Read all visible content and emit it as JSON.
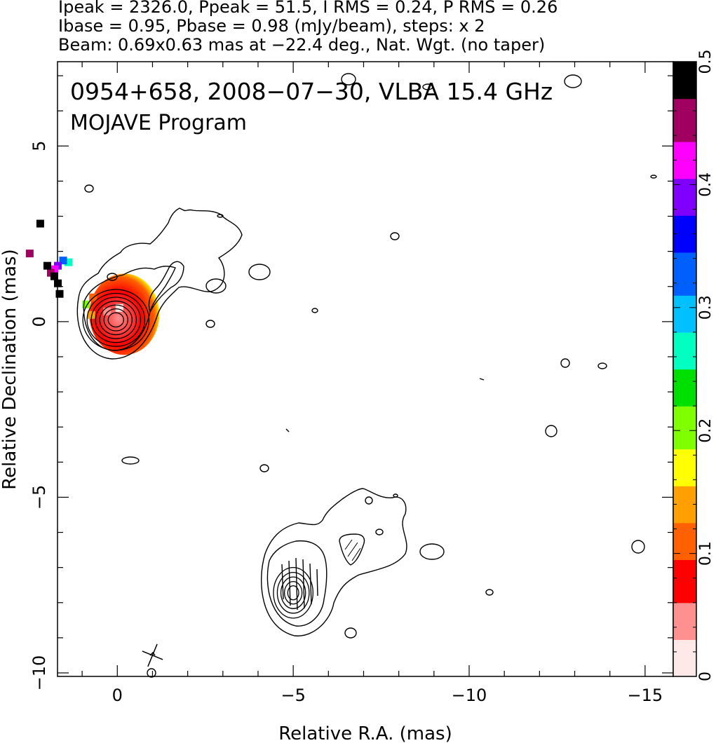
{
  "header": {
    "line1": "Ipeak = 2326.0, Ppeak = 51.5, I RMS = 0.24, P RMS = 0.26",
    "line2": "Ibase = 0.95, Pbase = 0.98 (mJy/beam), steps: x 2",
    "line3": "Beam: 0.69x0.63 mas at −22.4 deg., Nat. Wgt. (no taper)"
  },
  "chart_data": {
    "type": "heatmap",
    "title": "0954+658, 2008−07−30, VLBA 15.4 GHz",
    "subtitle": "MOJAVE Program",
    "xlabel": "Relative R.A. (mas)",
    "ylabel": "Relative Declination (mas)",
    "xlim": [
      1.7,
      -15.8
    ],
    "ylim": [
      -10.1,
      7.4
    ],
    "x_ticks": [
      0,
      -5,
      -10,
      -15
    ],
    "x_tick_labels": [
      "0",
      "−5",
      "−10",
      "−15"
    ],
    "y_ticks": [
      5,
      0,
      -5,
      -10
    ],
    "y_tick_labels": [
      "5",
      "0",
      "−5",
      "−10"
    ],
    "colorbar": {
      "range": [
        0,
        0.5
      ],
      "ticks": [
        0,
        0.1,
        0.2,
        0.3,
        0.4,
        0.5
      ],
      "tick_labels": [
        "0",
        "0.1",
        "0.2",
        "0.3",
        "0.4",
        "0.5"
      ],
      "colors": [
        "#ffe8e8",
        "#ff9090",
        "#ff0000",
        "#ff6000",
        "#ffa000",
        "#ffff00",
        "#80ff00",
        "#00e000",
        "#00ffc0",
        "#00c0ff",
        "#0060ff",
        "#0000ff",
        "#8000ff",
        "#ff00ff",
        "#a00060",
        "#000000"
      ]
    },
    "core": {
      "ra": 0.0,
      "dec": 0.05,
      "contour_radii": [
        0.22,
        0.34,
        0.46,
        0.58,
        0.7,
        0.82,
        0.94
      ]
    },
    "component": {
      "ra": -5.0,
      "dec": -7.6,
      "contour_radii": [
        0.2,
        0.32,
        0.45,
        0.58,
        0.72
      ]
    },
    "fractional_polarization": [
      {
        "ra": -0.05,
        "dec": 0.4,
        "value": 0.02
      },
      {
        "ra": 0.3,
        "dec": 0.3,
        "value": 0.05
      },
      {
        "ra": 0.7,
        "dec": 0.7,
        "value": 0.1
      },
      {
        "ra": 0.75,
        "dec": 0.2,
        "value": 0.14
      },
      {
        "ra": 0.9,
        "dec": 0.5,
        "value": 0.2
      },
      {
        "ra": 1.4,
        "dec": 1.7,
        "value": 0.28
      },
      {
        "ra": 1.55,
        "dec": 1.75,
        "value": 0.32
      },
      {
        "ra": 1.7,
        "dec": 1.6,
        "value": 0.38
      },
      {
        "ra": 1.8,
        "dec": 1.5,
        "value": 0.42
      },
      {
        "ra": 1.9,
        "dec": 1.4,
        "value": 0.45
      },
      {
        "ra": 2.0,
        "dec": 1.6,
        "value": 0.48
      },
      {
        "ra": 1.8,
        "dec": 1.3,
        "value": 0.5
      },
      {
        "ra": 1.7,
        "dec": 1.1,
        "value": 0.5
      },
      {
        "ra": 1.65,
        "dec": 0.8,
        "value": 0.5
      },
      {
        "ra": 2.2,
        "dec": 2.8,
        "value": 0.5
      },
      {
        "ra": 2.5,
        "dec": 1.95,
        "value": 0.44
      }
    ],
    "beam": {
      "major": 0.69,
      "minor": 0.63,
      "pa_deg": -22.4,
      "ra": -1.0,
      "dec": -9.5
    }
  }
}
